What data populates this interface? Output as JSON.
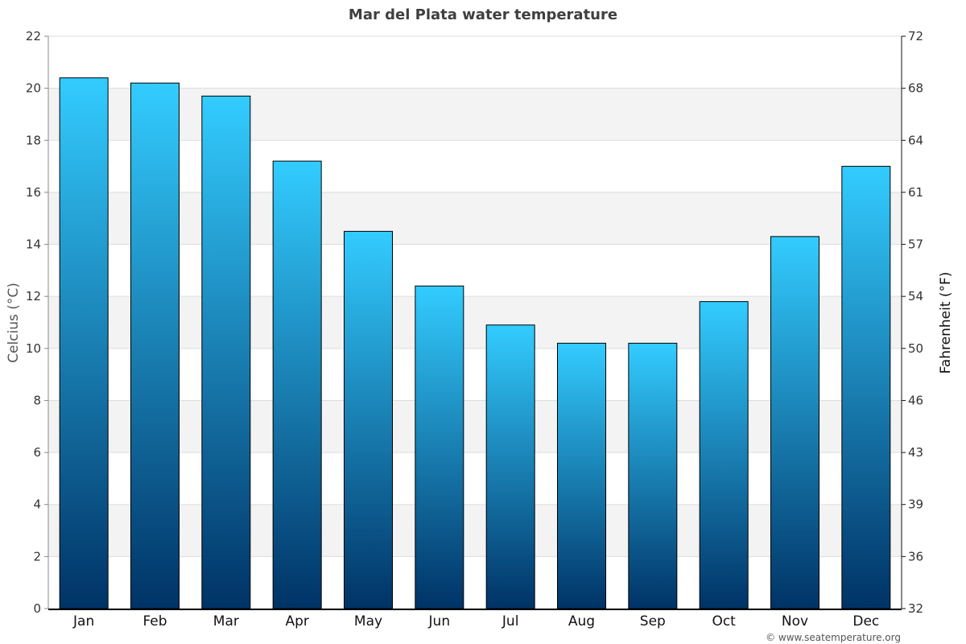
{
  "chart_data": {
    "type": "bar",
    "title": "Mar del Plata water temperature",
    "categories": [
      "Jan",
      "Feb",
      "Mar",
      "Apr",
      "May",
      "Jun",
      "Jul",
      "Aug",
      "Sep",
      "Oct",
      "Nov",
      "Dec"
    ],
    "values": [
      20.4,
      20.2,
      19.7,
      17.2,
      14.5,
      12.4,
      10.9,
      10.2,
      10.2,
      11.8,
      14.3,
      17.0
    ],
    "ylabel": "Celcius (°C)",
    "ylabel_right": "Fahrenheit (°F)",
    "xlabel": "",
    "ylim": [
      0,
      22
    ],
    "yticks": [
      0,
      2,
      4,
      6,
      8,
      10,
      12,
      14,
      16,
      18,
      20,
      22
    ],
    "yticks_right": [
      "32",
      "36",
      "39",
      "43",
      "46",
      "50",
      "54",
      "57",
      "61",
      "64",
      "68",
      "72"
    ],
    "grid": true,
    "legend": "none",
    "colors": {
      "bar_top": "#33ccff",
      "bar_bottom": "#003366",
      "band": "#f3f3f3",
      "grid": "#dddddd"
    }
  },
  "credit": "© www.seatemperature.org"
}
